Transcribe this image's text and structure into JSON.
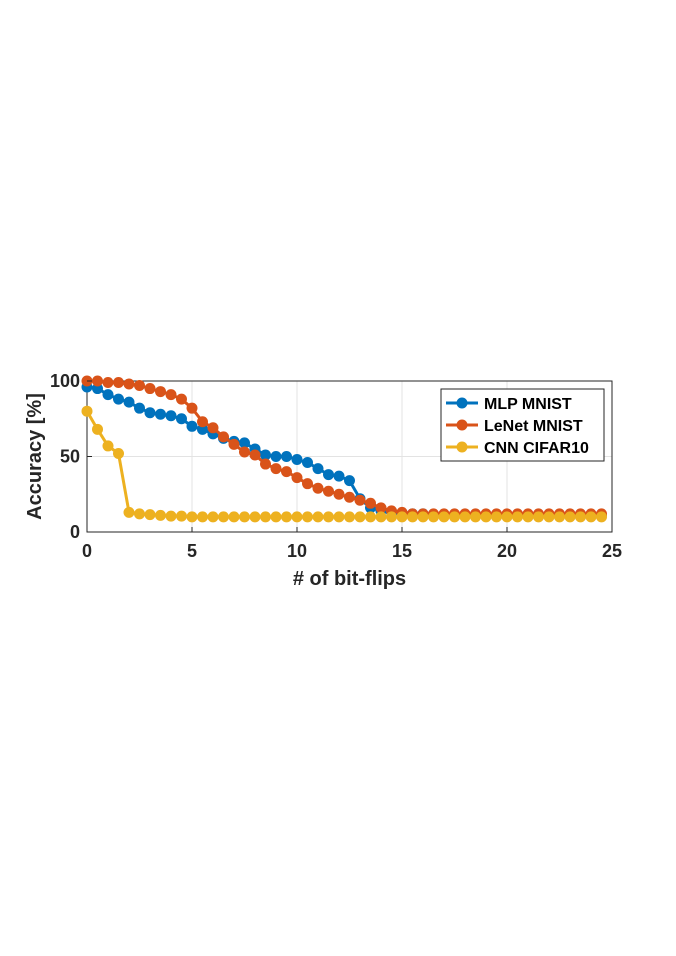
{
  "chart_data": {
    "type": "line",
    "xlabel": "# of bit-flips",
    "ylabel": "Accuracy [%]",
    "xlim": [
      0,
      25
    ],
    "ylim": [
      0,
      100
    ],
    "xticks": [
      0,
      5,
      10,
      15,
      20,
      25
    ],
    "yticks": [
      0,
      50,
      100
    ],
    "grid": true,
    "legend_position": "top-right",
    "series": [
      {
        "name": "MLP MNIST",
        "color": "#0072BD",
        "x": [
          0,
          0.5,
          1,
          1.5,
          2,
          2.5,
          3,
          3.5,
          4,
          4.5,
          5,
          5.5,
          6,
          6.5,
          7,
          7.5,
          8,
          8.5,
          9,
          9.5,
          10,
          10.5,
          11,
          11.5,
          12,
          12.5,
          13,
          13.5,
          14,
          14.5,
          15,
          15.5,
          16,
          16.5,
          17,
          17.5,
          18,
          18.5,
          19,
          19.5,
          20,
          20.5,
          21,
          21.5,
          22,
          22.5,
          23,
          23.5,
          24,
          24.5
        ],
        "y": [
          96,
          95,
          91,
          88,
          86,
          82,
          79,
          78,
          77,
          75,
          70,
          68,
          65,
          62,
          60,
          59,
          55,
          51,
          50,
          50,
          48,
          46,
          42,
          38,
          37,
          34,
          22,
          16,
          14,
          13,
          12,
          12,
          12,
          11,
          11,
          11,
          11,
          11,
          11,
          11,
          11,
          11,
          11,
          11,
          11,
          11,
          11,
          11,
          11,
          11
        ]
      },
      {
        "name": "LeNet MNIST",
        "color": "#D95319",
        "x": [
          0,
          0.5,
          1,
          1.5,
          2,
          2.5,
          3,
          3.5,
          4,
          4.5,
          5,
          5.5,
          6,
          6.5,
          7,
          7.5,
          8,
          8.5,
          9,
          9.5,
          10,
          10.5,
          11,
          11.5,
          12,
          12.5,
          13,
          13.5,
          14,
          14.5,
          15,
          15.5,
          16,
          16.5,
          17,
          17.5,
          18,
          18.5,
          19,
          19.5,
          20,
          20.5,
          21,
          21.5,
          22,
          22.5,
          23,
          23.5,
          24,
          24.5
        ],
        "y": [
          100,
          100,
          99,
          99,
          98,
          97,
          95,
          93,
          91,
          88,
          82,
          73,
          69,
          63,
          58,
          53,
          51,
          45,
          42,
          40,
          36,
          32,
          29,
          27,
          25,
          23,
          21,
          19,
          16,
          14,
          13,
          12,
          12,
          12,
          12,
          12,
          12,
          12,
          12,
          12,
          12,
          12,
          12,
          12,
          12,
          12,
          12,
          12,
          12,
          12
        ]
      },
      {
        "name": "CNN CIFAR10",
        "color": "#EDB120",
        "x": [
          0,
          0.5,
          1,
          1.5,
          2,
          2.5,
          3,
          3.5,
          4,
          4.5,
          5,
          5.5,
          6,
          6.5,
          7,
          7.5,
          8,
          8.5,
          9,
          9.5,
          10,
          10.5,
          11,
          11.5,
          12,
          12.5,
          13,
          13.5,
          14,
          14.5,
          15,
          15.5,
          16,
          16.5,
          17,
          17.5,
          18,
          18.5,
          19,
          19.5,
          20,
          20.5,
          21,
          21.5,
          22,
          22.5,
          23,
          23.5,
          24,
          24.5
        ],
        "y": [
          80,
          68,
          57,
          52,
          13,
          12,
          11.5,
          11,
          10.5,
          10.5,
          10,
          10,
          10,
          10,
          10,
          10,
          10,
          10,
          10,
          10,
          10,
          10,
          10,
          10,
          10,
          10,
          10,
          10,
          10,
          10,
          10,
          10,
          10,
          10,
          10,
          10,
          10,
          10,
          10,
          10,
          10,
          10,
          10,
          10,
          10,
          10,
          10,
          10,
          10,
          10
        ]
      }
    ]
  }
}
